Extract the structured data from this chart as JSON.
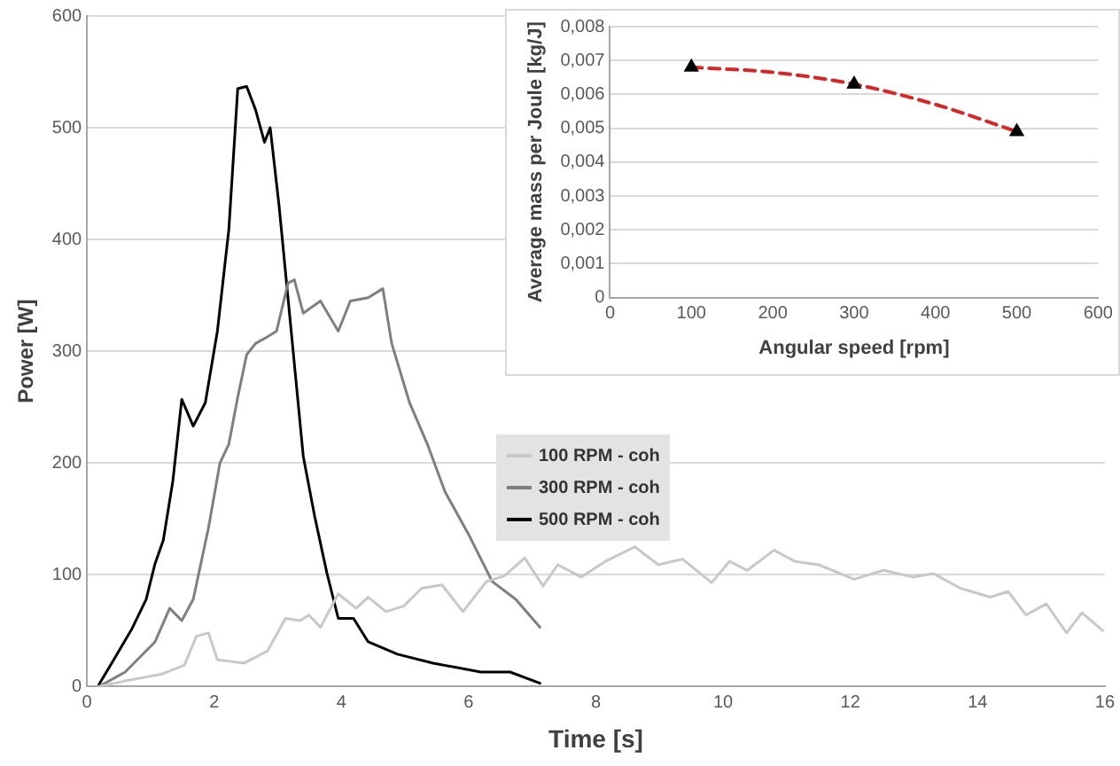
{
  "chart_data": [
    {
      "type": "line",
      "xlabel": "Time [s]",
      "ylabel": "Power [W]",
      "xlim": [
        0,
        16
      ],
      "xticks": [
        0,
        2,
        4,
        6,
        8,
        10,
        12,
        14,
        16
      ],
      "ylim": [
        0,
        600
      ],
      "yticks": [
        0,
        100,
        200,
        300,
        400,
        500,
        600
      ],
      "grid": "y",
      "legend": "center",
      "marker": "none",
      "line_style": "solid",
      "series": [
        {
          "name": "100 RPM - coh",
          "color": "#c8c8c8",
          "x": [
            0.19,
            0.6,
            1.16,
            1.53,
            1.72,
            1.91,
            2.05,
            2.47,
            2.84,
            3.12,
            3.35,
            3.49,
            3.67,
            3.95,
            4.23,
            4.42,
            4.7,
            4.98,
            5.26,
            5.58,
            5.91,
            6.28,
            6.56,
            6.88,
            7.17,
            7.4,
            7.77,
            8.15,
            8.61,
            8.98,
            9.36,
            9.82,
            10.1,
            10.38,
            10.8,
            11.13,
            11.5,
            12.06,
            12.52,
            12.99,
            13.31,
            13.73,
            14.2,
            14.48,
            14.76,
            15.08,
            15.4,
            15.64,
            15.97
          ],
          "values": [
            0,
            5,
            11,
            19,
            45,
            48,
            24,
            21,
            32,
            61,
            59,
            64,
            53,
            83,
            70,
            80,
            67,
            72,
            88,
            91,
            67,
            94,
            99,
            115,
            90,
            109,
            98,
            112,
            125,
            109,
            114,
            93,
            112,
            104,
            122,
            112,
            109,
            96,
            104,
            98,
            101,
            88,
            80,
            85,
            64,
            74,
            48,
            66,
            50
          ]
        },
        {
          "name": "300 RPM - coh",
          "color": "#7f7f7f",
          "x": [
            0.19,
            0.6,
            1.07,
            1.3,
            1.49,
            1.67,
            1.91,
            2.09,
            2.23,
            2.37,
            2.51,
            2.65,
            2.84,
            2.98,
            3.16,
            3.26,
            3.4,
            3.67,
            3.95,
            4.14,
            4.42,
            4.65,
            4.79,
            5.07,
            5.35,
            5.63,
            6.0,
            6.37,
            6.74,
            7.12
          ],
          "values": [
            0,
            13,
            40,
            70,
            59,
            78,
            142,
            200,
            217,
            259,
            297,
            307,
            313,
            318,
            361,
            364,
            334,
            345,
            318,
            345,
            348,
            356,
            307,
            254,
            217,
            174,
            136,
            94,
            78,
            53
          ]
        },
        {
          "name": "500 RPM - coh",
          "color": "#000000",
          "x": [
            0.19,
            0.42,
            0.7,
            0.93,
            1.07,
            1.2,
            1.35,
            1.49,
            1.67,
            1.86,
            2.05,
            2.23,
            2.37,
            2.51,
            2.65,
            2.79,
            2.88,
            3.02,
            3.2,
            3.4,
            3.58,
            3.77,
            3.95,
            4.19,
            4.42,
            4.88,
            5.44,
            6.19,
            6.65,
            7.12
          ],
          "values": [
            2,
            24,
            51,
            78,
            110,
            131,
            184,
            257,
            233,
            254,
            318,
            409,
            535,
            537,
            516,
            487,
            500,
            430,
            324,
            206,
            152,
            102,
            61,
            61,
            40,
            29,
            21,
            13,
            13,
            3
          ]
        }
      ]
    },
    {
      "type": "scatter",
      "xlabel": "Angular speed [rpm]",
      "ylabel": "Average mass per Joule [kg/J]",
      "xlim": [
        0,
        600
      ],
      "xticks": [
        0,
        100,
        200,
        300,
        400,
        500,
        600
      ],
      "ylim": [
        0,
        0.008
      ],
      "yticks": [
        0,
        {
          "value": 0.001,
          "label": "0,001"
        },
        {
          "value": 0.002,
          "label": "0,002"
        },
        {
          "value": 0.003,
          "label": "0,003"
        },
        {
          "value": 0.004,
          "label": "0,004"
        },
        {
          "value": 0.005,
          "label": "0,005"
        },
        {
          "value": 0.006,
          "label": "0,006"
        },
        {
          "value": 0.007,
          "label": "0,007"
        },
        {
          "value": 0.008,
          "label": "0,008"
        }
      ],
      "grid": "y",
      "marker": "triangle",
      "series": [
        {
          "color": "#000000",
          "x": [
            100,
            300,
            500
          ],
          "values": [
            0.0068,
            0.0063,
            0.0049
          ]
        },
        {
          "type": "line",
          "color": "#d62728",
          "line_style": "dashed",
          "marker": "none",
          "x": [
            100,
            200,
            300,
            400,
            500
          ],
          "values": [
            0.0068,
            0.00665,
            0.0063,
            0.0057,
            0.0049
          ]
        }
      ]
    }
  ]
}
